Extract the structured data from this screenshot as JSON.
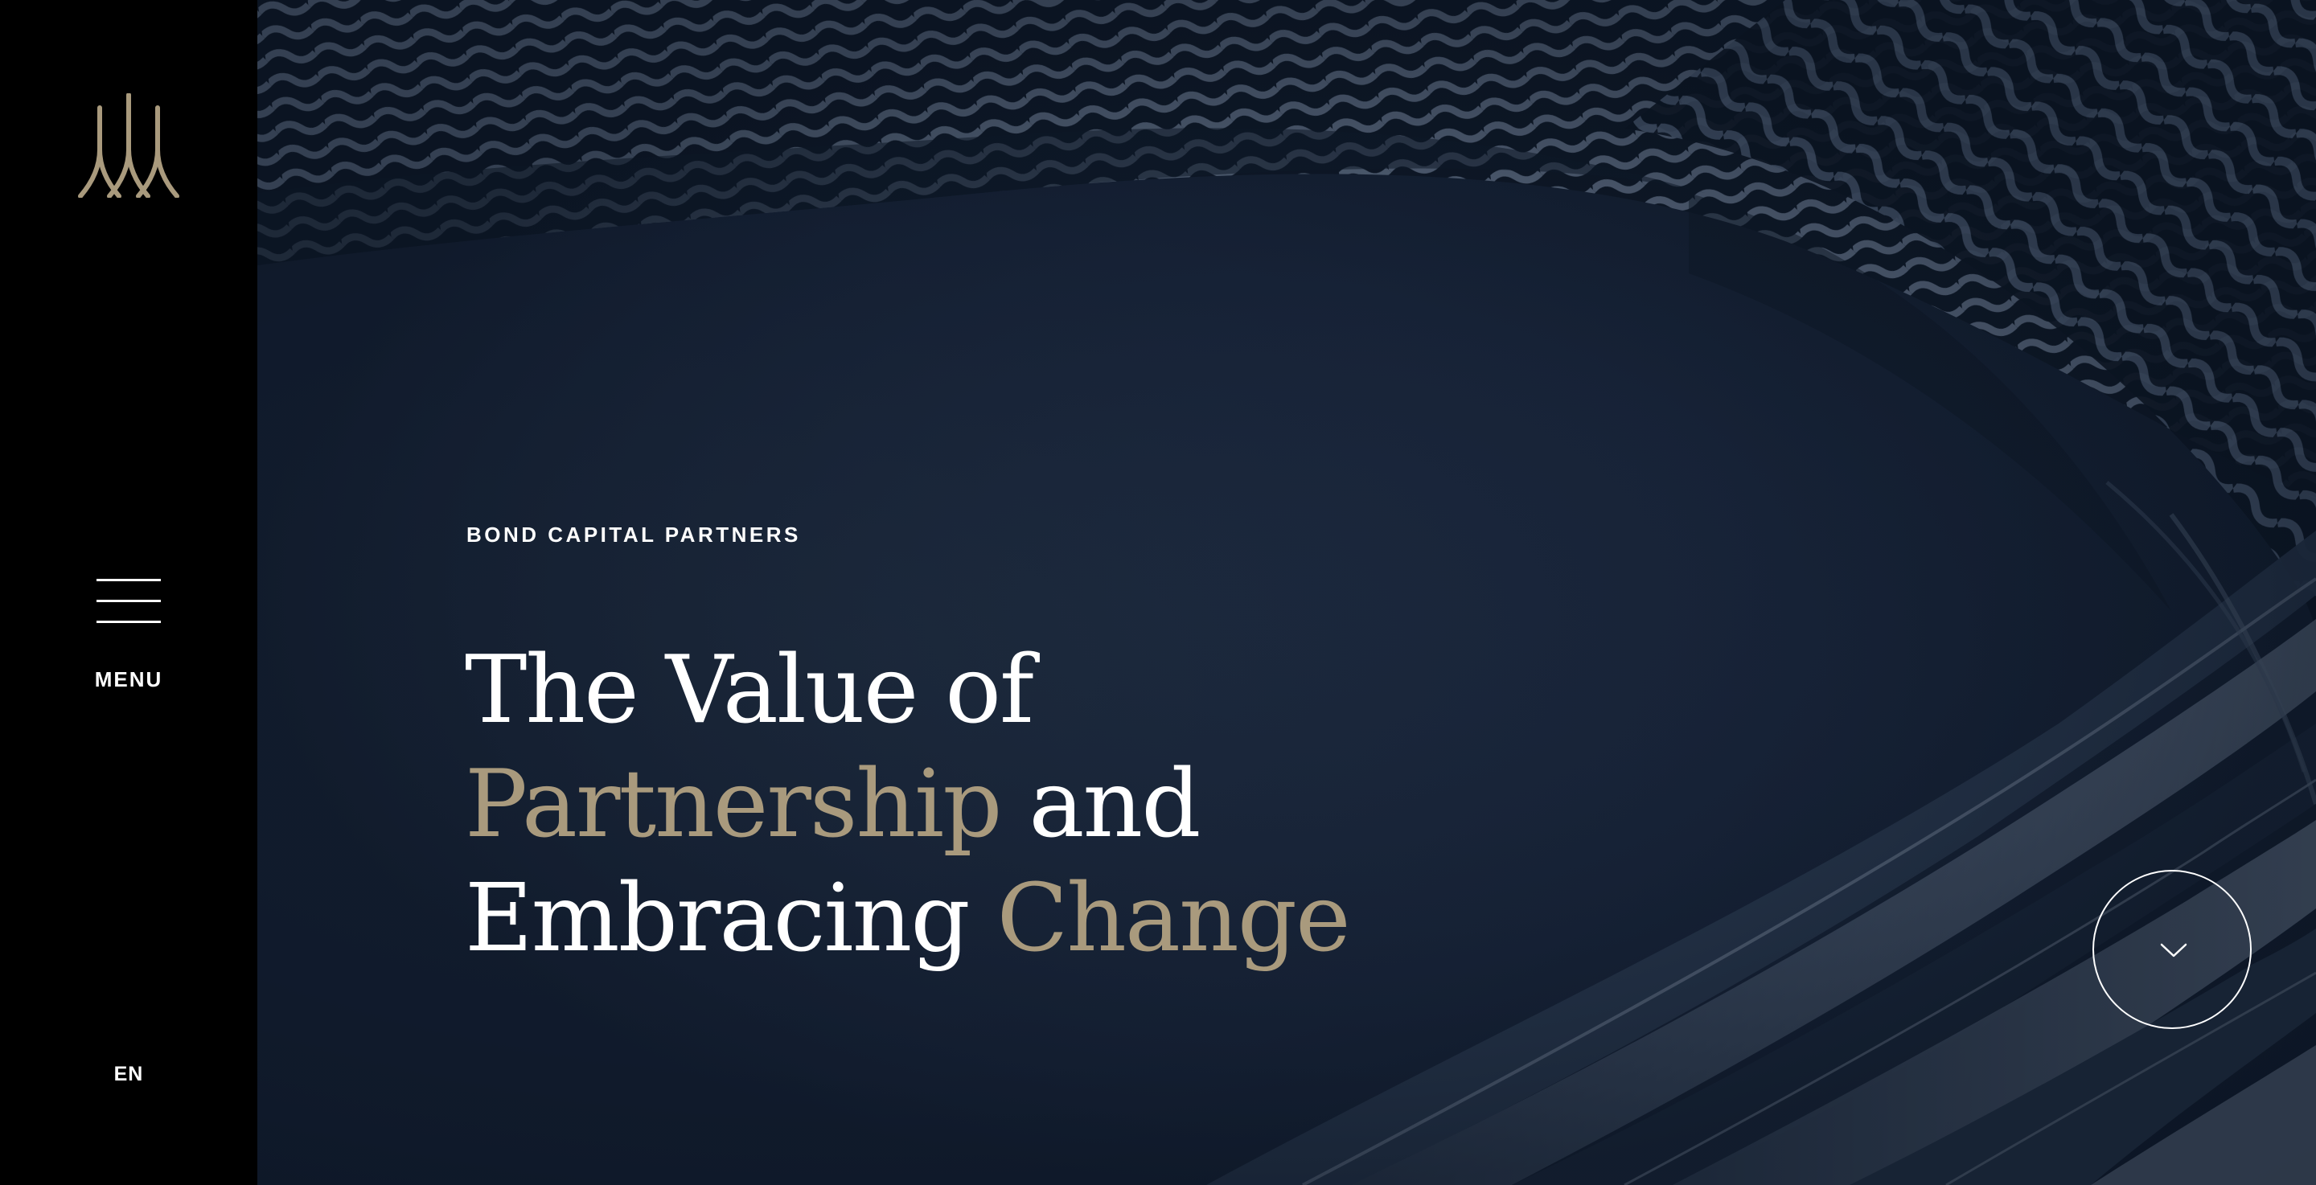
{
  "sidebar": {
    "logo_icon": "triple-peak-logo-icon",
    "menu_icon": "hamburger-icon",
    "menu_label": "MENU",
    "language_label": "EN"
  },
  "hero": {
    "eyebrow": "BOND CAPITAL PARTNERS",
    "headline": {
      "line1": "The Value of",
      "line2_gold": "Partnership",
      "line2_white": " and",
      "line3_white": "Embracing ",
      "line3_gold": "Change"
    },
    "scroll_icon": "chevron-down-icon"
  },
  "colors": {
    "gold": "#a99a7d",
    "navy": "#18243a",
    "white": "#ffffff",
    "black": "#000000"
  }
}
